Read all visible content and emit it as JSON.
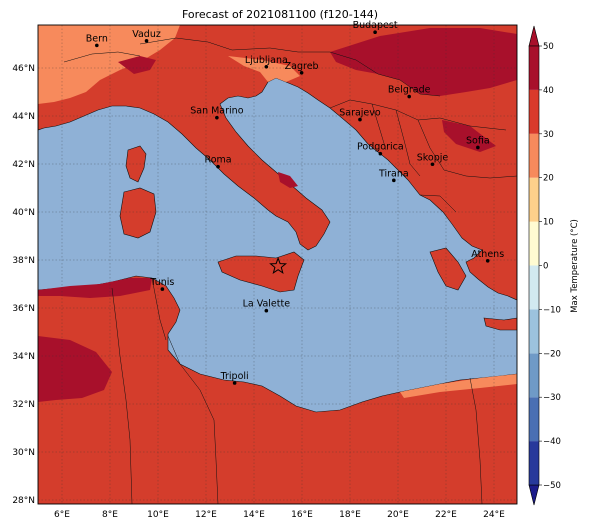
{
  "title": "Forecast of 2021081100 (f120-144)",
  "colorbar": {
    "label": "Max Temperature (°C)",
    "ticks": [
      "−50",
      "−40",
      "−30",
      "−20",
      "−10",
      "0",
      "10",
      "20",
      "30",
      "40",
      "50"
    ],
    "colors": [
      "#1b1b8a",
      "#27399b",
      "#4a6fb3",
      "#6f9ac7",
      "#9cc2dd",
      "#d2e9f0",
      "#fffbd2",
      "#fdd08b",
      "#f78a5c",
      "#d93a2b",
      "#a8102b"
    ],
    "sea_color": "#8fb1d6",
    "land_color": "#d43d2c"
  },
  "axes": {
    "lon_labels": [
      "6°E",
      "8°E",
      "10°E",
      "12°E",
      "14°E",
      "16°E",
      "18°E",
      "20°E",
      "22°E",
      "24°E"
    ],
    "lat_labels": [
      "46°N",
      "44°N",
      "42°N",
      "40°N",
      "38°N",
      "36°N",
      "34°N",
      "32°N",
      "30°N",
      "28°N"
    ]
  },
  "cities": [
    {
      "name": "Bern",
      "lon": 7.45,
      "lat": 46.95
    },
    {
      "name": "Vaduz",
      "lon": 9.52,
      "lat": 47.14
    },
    {
      "name": "Budapest",
      "lon": 19.04,
      "lat": 47.5
    },
    {
      "name": "Ljubljana",
      "lon": 14.51,
      "lat": 46.06
    },
    {
      "name": "Zagreb",
      "lon": 15.98,
      "lat": 45.81
    },
    {
      "name": "Belgrade",
      "lon": 20.46,
      "lat": 44.82
    },
    {
      "name": "San Marino",
      "lon": 12.45,
      "lat": 43.94
    },
    {
      "name": "Sarajevo",
      "lon": 18.41,
      "lat": 43.86
    },
    {
      "name": "Sofia",
      "lon": 23.32,
      "lat": 42.7
    },
    {
      "name": "Podgorica",
      "lon": 19.26,
      "lat": 42.44
    },
    {
      "name": "Skopje",
      "lon": 21.43,
      "lat": 42.0
    },
    {
      "name": "Roma",
      "lon": 12.5,
      "lat": 41.9
    },
    {
      "name": "Tirana",
      "lon": 19.82,
      "lat": 41.33
    },
    {
      "name": "Athens",
      "lon": 23.73,
      "lat": 37.98
    },
    {
      "name": "Tunis",
      "lon": 10.18,
      "lat": 36.8
    },
    {
      "name": "La Valette",
      "lon": 14.51,
      "lat": 35.9
    },
    {
      "name": "Tripoli",
      "lon": 13.19,
      "lat": 32.89
    }
  ],
  "marker": {
    "name": "star-marker",
    "lon": 15.0,
    "lat": 37.75
  }
}
